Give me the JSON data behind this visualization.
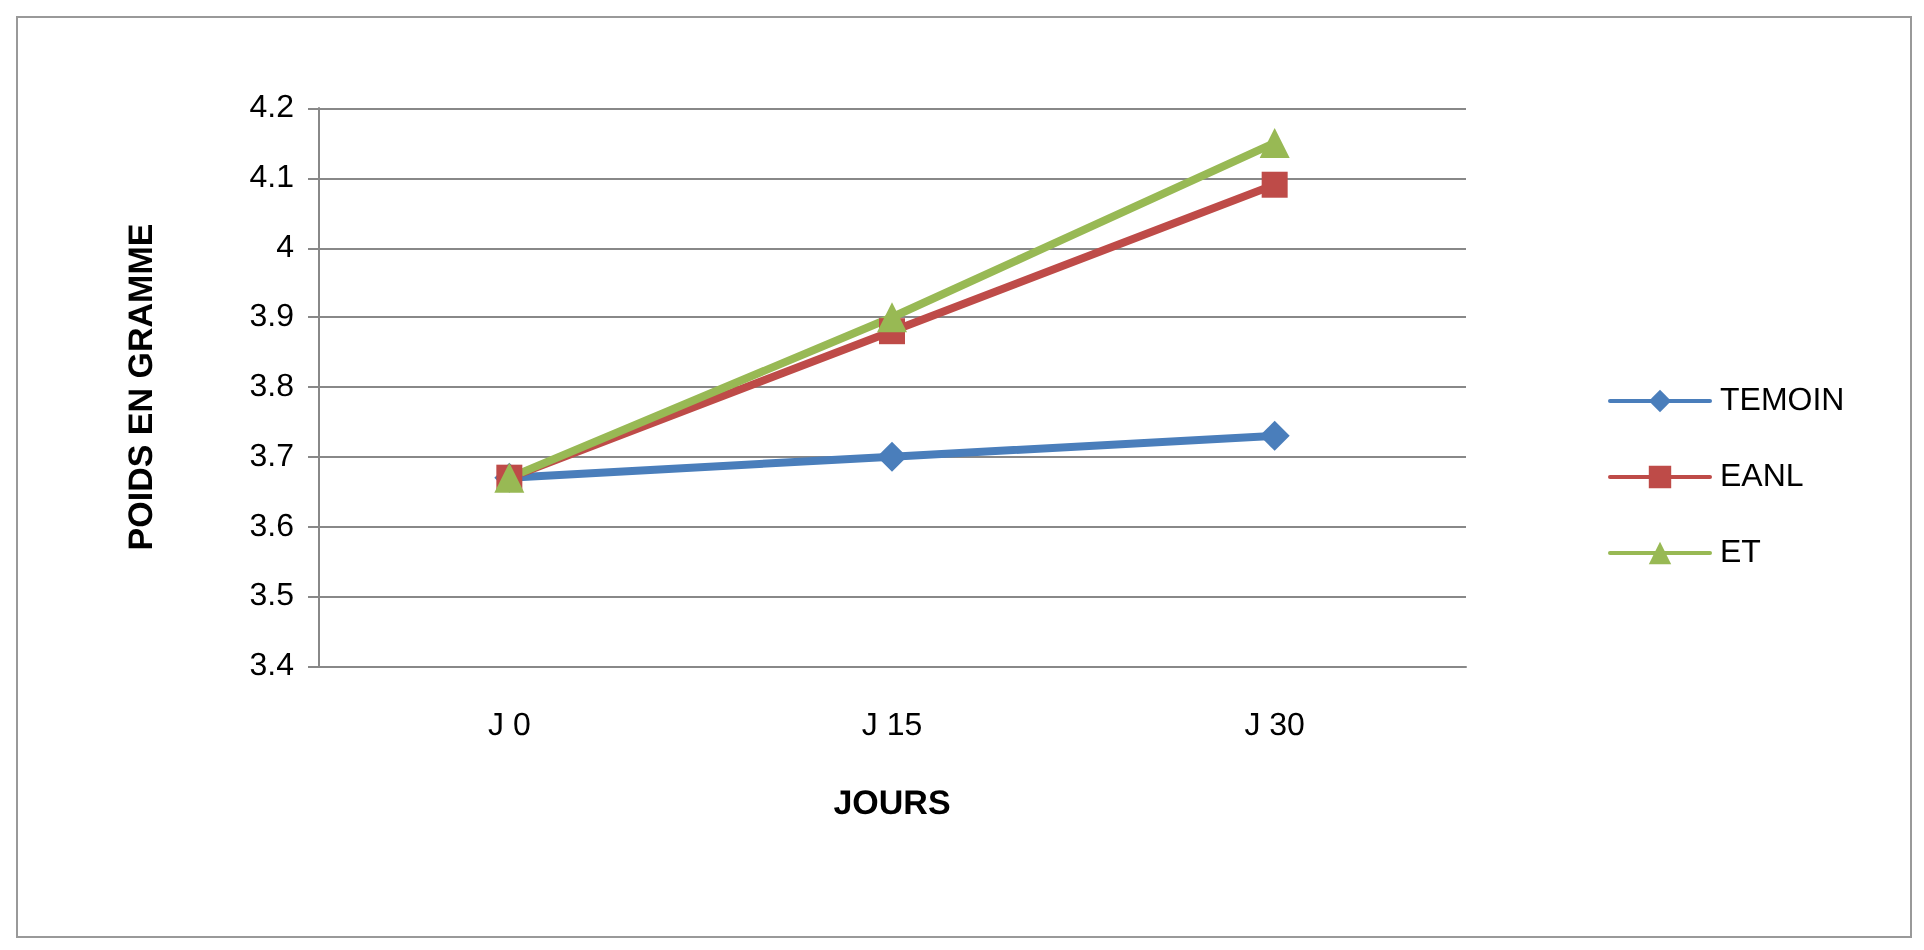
{
  "chart_data": {
    "type": "line",
    "xlabel": "JOURS",
    "ylabel": "POIDS EN GRAMME",
    "categories": [
      "J 0",
      "J 15",
      "J 30"
    ],
    "series": [
      {
        "name": "TEMOIN",
        "color": "#4a7ebb",
        "marker": "diamond",
        "values": [
          3.67,
          3.7,
          3.73
        ]
      },
      {
        "name": "EANL",
        "color": "#be4b48",
        "marker": "square",
        "values": [
          3.67,
          3.88,
          4.09
        ]
      },
      {
        "name": "ET",
        "color": "#98b954",
        "marker": "triangle",
        "values": [
          3.67,
          3.9,
          4.15
        ]
      }
    ],
    "ylim": [
      3.4,
      4.2
    ],
    "yticks": [
      3.4,
      3.5,
      3.6,
      3.7,
      3.8,
      3.9,
      4,
      4.1,
      4.2
    ],
    "grid": "y",
    "legend": "right",
    "line_style": "solid"
  }
}
